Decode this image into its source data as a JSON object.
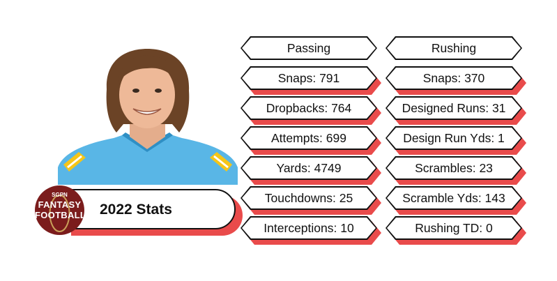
{
  "title": "2022 Stats",
  "logo": {
    "brand": "SGPN",
    "line1": "FANTASY",
    "line2": "FOOTBALL"
  },
  "passing": [
    "Passing",
    "Snaps: 791",
    "Dropbacks: 764",
    "Attempts: 699",
    "Yards: 4749",
    "Touchdowns: 25",
    "Interceptions: 10"
  ],
  "rushing": [
    "Rushing",
    "Snaps: 370",
    "Designed Runs: 31",
    "Design Run Yds: 1",
    "Scrambles: 23",
    "Scramble Yds: 143",
    "Rushing TD: 0"
  ],
  "colors": {
    "accent": "#e94b4b",
    "logo": "#7b1c1c",
    "jersey": "#4fb3e6"
  }
}
